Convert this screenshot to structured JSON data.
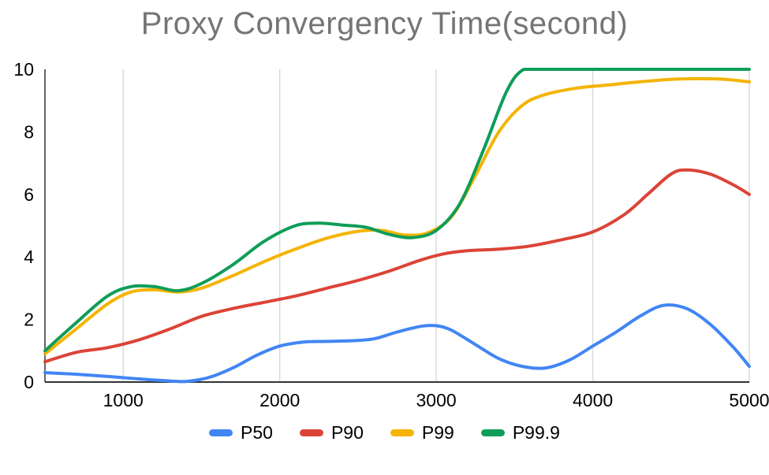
{
  "chart_data": {
    "type": "line",
    "title": "Proxy Convergency Time(second)",
    "xlabel": "",
    "ylabel": "",
    "xlim": [
      500,
      5000
    ],
    "ylim": [
      0,
      10
    ],
    "x_ticks": [
      1000,
      2000,
      3000,
      4000,
      5000
    ],
    "y_ticks": [
      0,
      2,
      4,
      6,
      8,
      10
    ],
    "grid": "vertical-only",
    "smooth": true,
    "legend_position": "bottom",
    "colors": {
      "grid": "#dadada",
      "axis": "#333333",
      "tick_label": "#000000",
      "title": "#757575"
    },
    "series": [
      {
        "name": "P50",
        "color": "#4285f4",
        "points": [
          [
            500,
            0.3
          ],
          [
            700,
            0.25
          ],
          [
            900,
            0.18
          ],
          [
            1100,
            0.1
          ],
          [
            1250,
            0.05
          ],
          [
            1400,
            0.02
          ],
          [
            1550,
            0.15
          ],
          [
            1700,
            0.45
          ],
          [
            1850,
            0.85
          ],
          [
            2000,
            1.15
          ],
          [
            2150,
            1.28
          ],
          [
            2300,
            1.3
          ],
          [
            2450,
            1.32
          ],
          [
            2600,
            1.38
          ],
          [
            2750,
            1.6
          ],
          [
            2900,
            1.78
          ],
          [
            3000,
            1.8
          ],
          [
            3100,
            1.65
          ],
          [
            3250,
            1.2
          ],
          [
            3400,
            0.75
          ],
          [
            3550,
            0.5
          ],
          [
            3700,
            0.45
          ],
          [
            3850,
            0.7
          ],
          [
            4000,
            1.15
          ],
          [
            4150,
            1.6
          ],
          [
            4300,
            2.1
          ],
          [
            4450,
            2.45
          ],
          [
            4600,
            2.35
          ],
          [
            4750,
            1.85
          ],
          [
            4900,
            1.1
          ],
          [
            5000,
            0.5
          ]
        ]
      },
      {
        "name": "P90",
        "color": "#db4437",
        "points": [
          [
            500,
            0.65
          ],
          [
            700,
            0.95
          ],
          [
            900,
            1.1
          ],
          [
            1100,
            1.35
          ],
          [
            1300,
            1.7
          ],
          [
            1500,
            2.1
          ],
          [
            1700,
            2.35
          ],
          [
            1900,
            2.55
          ],
          [
            2100,
            2.75
          ],
          [
            2300,
            3.0
          ],
          [
            2500,
            3.25
          ],
          [
            2700,
            3.55
          ],
          [
            2900,
            3.9
          ],
          [
            3050,
            4.1
          ],
          [
            3200,
            4.2
          ],
          [
            3400,
            4.25
          ],
          [
            3600,
            4.35
          ],
          [
            3800,
            4.55
          ],
          [
            4000,
            4.8
          ],
          [
            4200,
            5.35
          ],
          [
            4350,
            6.0
          ],
          [
            4500,
            6.65
          ],
          [
            4600,
            6.78
          ],
          [
            4750,
            6.65
          ],
          [
            4900,
            6.3
          ],
          [
            5000,
            6.0
          ]
        ]
      },
      {
        "name": "P99",
        "color": "#f4b400",
        "points": [
          [
            500,
            0.9
          ],
          [
            700,
            1.7
          ],
          [
            900,
            2.5
          ],
          [
            1050,
            2.88
          ],
          [
            1200,
            2.95
          ],
          [
            1350,
            2.88
          ],
          [
            1500,
            3.0
          ],
          [
            1700,
            3.4
          ],
          [
            1900,
            3.85
          ],
          [
            2100,
            4.25
          ],
          [
            2300,
            4.6
          ],
          [
            2500,
            4.82
          ],
          [
            2650,
            4.85
          ],
          [
            2800,
            4.7
          ],
          [
            2950,
            4.78
          ],
          [
            3100,
            5.3
          ],
          [
            3250,
            6.6
          ],
          [
            3400,
            8.0
          ],
          [
            3550,
            8.85
          ],
          [
            3700,
            9.2
          ],
          [
            3900,
            9.4
          ],
          [
            4100,
            9.5
          ],
          [
            4300,
            9.6
          ],
          [
            4500,
            9.68
          ],
          [
            4700,
            9.7
          ],
          [
            4850,
            9.68
          ],
          [
            5000,
            9.6
          ]
        ]
      },
      {
        "name": "P99.9",
        "color": "#0f9d58",
        "points": [
          [
            500,
            1.0
          ],
          [
            700,
            1.9
          ],
          [
            900,
            2.75
          ],
          [
            1050,
            3.05
          ],
          [
            1200,
            3.05
          ],
          [
            1350,
            2.92
          ],
          [
            1500,
            3.15
          ],
          [
            1700,
            3.75
          ],
          [
            1900,
            4.5
          ],
          [
            2100,
            5.0
          ],
          [
            2250,
            5.08
          ],
          [
            2400,
            5.02
          ],
          [
            2550,
            4.95
          ],
          [
            2700,
            4.72
          ],
          [
            2850,
            4.62
          ],
          [
            3000,
            4.85
          ],
          [
            3150,
            5.7
          ],
          [
            3300,
            7.4
          ],
          [
            3450,
            9.3
          ],
          [
            3560,
            10
          ],
          [
            3700,
            10
          ],
          [
            3900,
            10
          ],
          [
            4100,
            10
          ],
          [
            4300,
            10
          ],
          [
            4500,
            10
          ],
          [
            4750,
            10
          ],
          [
            5000,
            10
          ]
        ]
      }
    ]
  }
}
